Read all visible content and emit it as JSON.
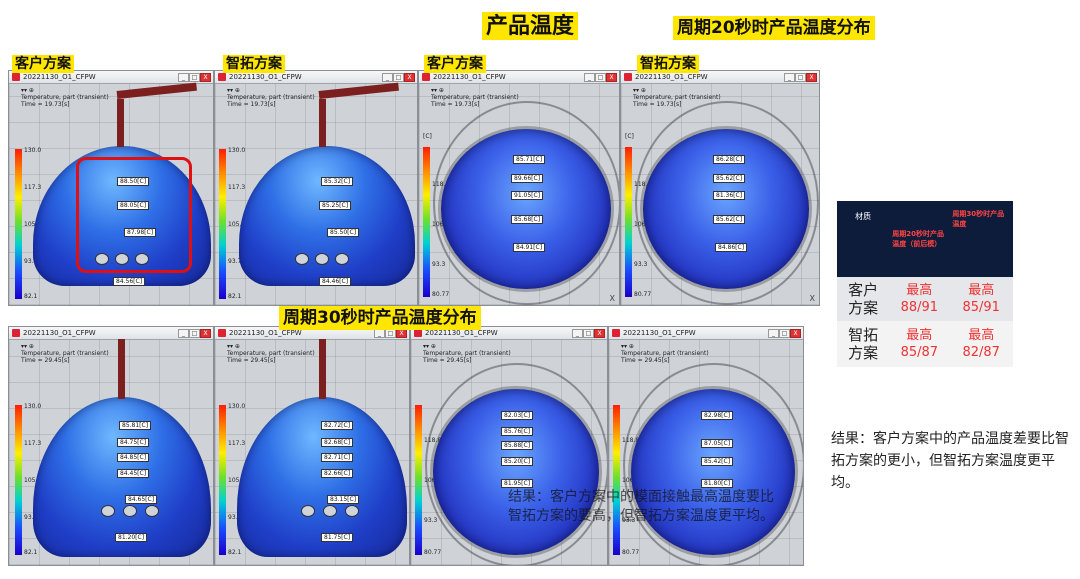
{
  "headers": {
    "product_temp": "产品温度",
    "cycle20": "周期20秒时产品温度分布",
    "cycle30": "周期30秒时产品温度分布"
  },
  "labels": {
    "customer": "客户方案",
    "zhituo": "智拓方案"
  },
  "window": {
    "title": "20221130_O1_CFPW",
    "min": "_",
    "max": "□",
    "close": "X",
    "toolbar": "▾▾ ⊕",
    "result_name": "Temperature, part (transient)",
    "time_20": "Time = 19.73[s]",
    "time_30": "Time = 29.45[s]"
  },
  "scales": {
    "s1": [
      "130.0",
      "117.3",
      "105.4",
      "93.7",
      "82.1"
    ],
    "s2": [
      "130.0",
      "117.3",
      "105.4",
      "93.7",
      "82.1"
    ],
    "s3": [
      "[C]",
      "118.8",
      "106.6",
      "93.3",
      "80.77"
    ],
    "s4": [
      "[C]",
      "118.8",
      "106.6",
      "93.3",
      "80.77"
    ],
    "s5": [
      "130.0",
      "117.3",
      "105.4",
      "93.7",
      "82.1"
    ],
    "s6": [
      "130.0",
      "117.3",
      "105.4",
      "93.7",
      "82.1"
    ],
    "s7": [
      "118.8",
      "106.6",
      "93.3",
      "80.77"
    ],
    "s8": [
      "118.8",
      "106.6",
      "93.3",
      "80.77"
    ]
  },
  "probes": {
    "p1": [
      "88.50[C]",
      "88.05[C]",
      "87.98[C]",
      "84.56[C]"
    ],
    "p2": [
      "85.32[C]",
      "85.25[C]",
      "85.50[C]",
      "84.46[C]"
    ],
    "p3": [
      "85.71[C]",
      "89.66[C]",
      "91.05[C]",
      "85.68[C]",
      "84.91[C]"
    ],
    "p4": [
      "86.28[C]",
      "85.62[C]",
      "81.36[C]",
      "85.62[C]",
      "84.86[C]"
    ],
    "p5": [
      "85.81[C]",
      "84.75[C]",
      "84.85[C]",
      "84.45[C]",
      "84.65[C]",
      "81.20[C]"
    ],
    "p6": [
      "82.72[C]",
      "82.68[C]",
      "82.71[C]",
      "82.66[C]",
      "83.15[C]",
      "81.75[C]"
    ],
    "p7": [
      "82.03[C]",
      "85.76[C]",
      "85.88[C]",
      "85.20[C]",
      "81.95[C]"
    ],
    "p8": [
      "82.98[C]",
      "87.05[C]",
      "85.42[C]",
      "81.80[C]"
    ]
  },
  "table": {
    "col_material": "材质",
    "col_20": "周期20秒时产品温度（前后模）",
    "col_30": "周期30秒时产品温度",
    "rows": [
      {
        "name": "客户方案",
        "label20": "最高",
        "val20": "88/91",
        "label30": "最高",
        "val30": "85/91"
      },
      {
        "name": "智拓方案",
        "label20": "最高",
        "val20": "85/87",
        "label30": "最高",
        "val30": "82/87"
      }
    ]
  },
  "conclusion": "结果：客户方案中的产品温度差要比智拓方案的更小，但智拓方案温度更平均。",
  "overlay_note": "结果：客户方案中的模面接触最高温度要比智拓方案的要高，但智拓方案温度更平均。",
  "edge_marks": {
    "x": "X",
    "x2": "X"
  }
}
